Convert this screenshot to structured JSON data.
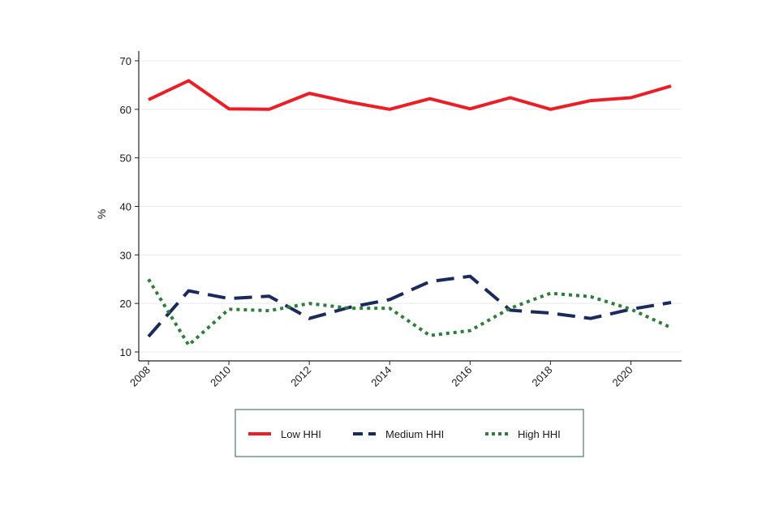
{
  "chart_data": {
    "type": "line",
    "title": "",
    "xlabel": "",
    "ylabel": "%",
    "ylim": [
      10,
      70
    ],
    "yticks": [
      10,
      20,
      30,
      40,
      50,
      60,
      70
    ],
    "xlim": [
      2008,
      2021
    ],
    "xticks": [
      2008,
      2010,
      2012,
      2014,
      2016,
      2018,
      2020
    ],
    "grid": true,
    "legend_position": "bottom",
    "x": [
      2008,
      2009,
      2010,
      2011,
      2012,
      2013,
      2014,
      2015,
      2016,
      2017,
      2018,
      2019,
      2020,
      2021
    ],
    "series": [
      {
        "name": "Low HHI",
        "color": "#ee1c25",
        "style": "solid",
        "values": [
          62.0,
          65.9,
          60.1,
          60.0,
          63.3,
          61.5,
          60.0,
          62.2,
          60.1,
          62.4,
          60.0,
          61.8,
          62.4,
          64.8
        ]
      },
      {
        "name": "Medium HHI",
        "color": "#1a2a5e",
        "style": "dashed",
        "values": [
          13.2,
          22.6,
          21.0,
          21.5,
          16.9,
          19.2,
          20.8,
          24.5,
          25.6,
          18.6,
          18.0,
          16.9,
          18.8,
          20.2
        ]
      },
      {
        "name": "High HHI",
        "color": "#2e7d3a",
        "style": "dotted",
        "values": [
          25.0,
          11.4,
          18.8,
          18.5,
          20.0,
          19.0,
          19.0,
          13.4,
          14.4,
          19.0,
          22.1,
          21.4,
          18.8,
          15.0
        ]
      }
    ]
  }
}
